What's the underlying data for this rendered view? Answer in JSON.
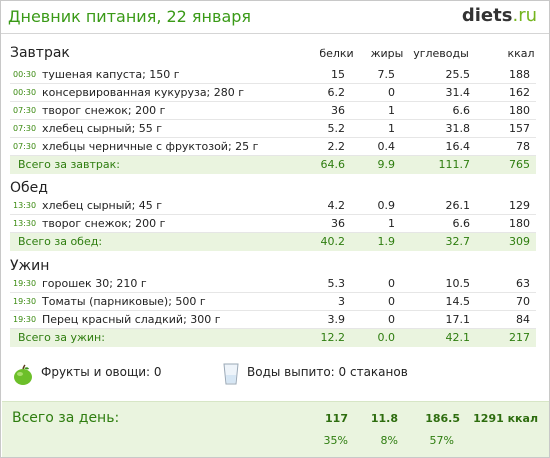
{
  "header": {
    "title": "Дневник питания, 22 января",
    "brand_name": "diets",
    "brand_tld": ".ru"
  },
  "columns": {
    "protein": "белки",
    "fat": "жиры",
    "carbs": "углеводы",
    "kcal": "ккал"
  },
  "meals": [
    {
      "title": "Завтрак",
      "items": [
        {
          "time": "00:30",
          "food": "тушеная капуста; 150 г",
          "protein": "15",
          "fat": "7.5",
          "carbs": "25.5",
          "kcal": "188"
        },
        {
          "time": "00:30",
          "food": "консервированная кукуруза; 280 г",
          "protein": "6.2",
          "fat": "0",
          "carbs": "31.4",
          "kcal": "162"
        },
        {
          "time": "07:30",
          "food": "творог снежок; 200 г",
          "protein": "36",
          "fat": "1",
          "carbs": "6.6",
          "kcal": "180"
        },
        {
          "time": "07:30",
          "food": "хлебец сырный; 55 г",
          "protein": "5.2",
          "fat": "1",
          "carbs": "31.8",
          "kcal": "157"
        },
        {
          "time": "07:30",
          "food": "хлебцы черничные с фруктозой; 25 г",
          "protein": "2.2",
          "fat": "0.4",
          "carbs": "16.4",
          "kcal": "78"
        }
      ],
      "total": {
        "label": "Всего за завтрак:",
        "protein": "64.6",
        "fat": "9.9",
        "carbs": "111.7",
        "kcal": "765"
      }
    },
    {
      "title": "Обед",
      "items": [
        {
          "time": "13:30",
          "food": "хлебец сырный; 45 г",
          "protein": "4.2",
          "fat": "0.9",
          "carbs": "26.1",
          "kcal": "129"
        },
        {
          "time": "13:30",
          "food": "творог снежок; 200 г",
          "protein": "36",
          "fat": "1",
          "carbs": "6.6",
          "kcal": "180"
        }
      ],
      "total": {
        "label": "Всего за обед:",
        "protein": "40.2",
        "fat": "1.9",
        "carbs": "32.7",
        "kcal": "309"
      }
    },
    {
      "title": "Ужин",
      "items": [
        {
          "time": "19:30",
          "food": "горошек 30; 210 г",
          "protein": "5.3",
          "fat": "0",
          "carbs": "10.5",
          "kcal": "63"
        },
        {
          "time": "19:30",
          "food": "Томаты (парниковые); 500 г",
          "protein": "3",
          "fat": "0",
          "carbs": "14.5",
          "kcal": "70"
        },
        {
          "time": "19:30",
          "food": "Перец красный сладкий; 300 г",
          "protein": "3.9",
          "fat": "0",
          "carbs": "17.1",
          "kcal": "84"
        }
      ],
      "total": {
        "label": "Всего за ужин:",
        "protein": "12.2",
        "fat": "0.0",
        "carbs": "42.1",
        "kcal": "217"
      }
    }
  ],
  "extras": {
    "fruits": "Фрукты и овощи: 0",
    "water": "Воды выпито: 0 стаканов"
  },
  "day_total": {
    "label": "Всего за день:",
    "protein": "117",
    "fat": "11.8",
    "carbs": "186.5",
    "kcal": "1291 ккал",
    "protein_pct": "35%",
    "fat_pct": "8%",
    "carbs_pct": "57%"
  },
  "icons": [
    "apple-icon",
    "water-glass-icon"
  ],
  "colors": {
    "accent": "#3a9a17",
    "total_bg": "#eaf4df"
  }
}
